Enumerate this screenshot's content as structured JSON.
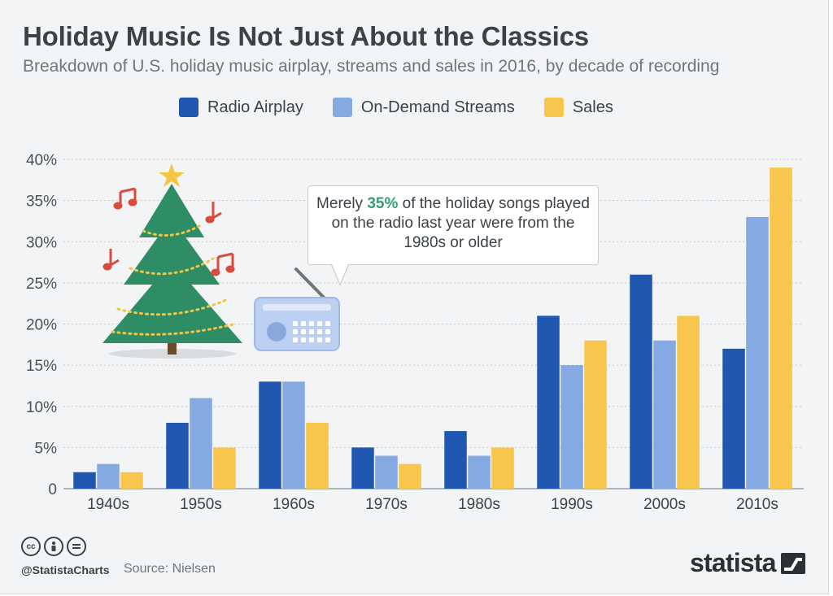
{
  "header": {
    "title": "Holiday Music Is Not Just About the Classics",
    "subtitle": "Breakdown of U.S. holiday music airplay, streams and sales in 2016, by decade of recording"
  },
  "colors": {
    "radio_airplay": "#1f57b0",
    "on_demand_streams": "#85a9e2",
    "sales": "#f8c64c",
    "gridline": "#c5c9cc",
    "text_dark": "#3b4248",
    "highlight": "#33a06f"
  },
  "callout": {
    "before": "Merely ",
    "highlight": "35%",
    "after": " of the holiday songs played on the radio last year were from the 1980s or older"
  },
  "illustrations": [
    "christmas-tree-icon",
    "music-note-icon",
    "radio-icon",
    "star-icon"
  ],
  "footer": {
    "handle": "@StatistaCharts",
    "source": "Source: Nielsen",
    "brand": "statista",
    "license_icons": [
      "cc-icon",
      "attribution-icon",
      "no-derivatives-icon"
    ]
  },
  "chart_data": {
    "type": "bar",
    "title": "Holiday Music Is Not Just About the Classics",
    "subtitle": "Breakdown of U.S. holiday music airplay, streams and sales in 2016, by decade of recording",
    "xlabel": "",
    "ylabel": "",
    "ylim": [
      0,
      40
    ],
    "yticks": [
      0,
      5,
      10,
      15,
      20,
      25,
      30,
      35,
      40
    ],
    "ytick_labels": [
      "0",
      "5%",
      "10%",
      "15%",
      "20%",
      "25%",
      "30%",
      "35%",
      "40%"
    ],
    "grid": true,
    "legend_position": "top",
    "categories": [
      "1940s",
      "1950s",
      "1960s",
      "1970s",
      "1980s",
      "1990s",
      "2000s",
      "2010s"
    ],
    "series": [
      {
        "name": "Radio Airplay",
        "values": [
          2,
          8,
          13,
          5,
          7,
          21,
          26,
          17
        ]
      },
      {
        "name": "On-Demand Streams",
        "values": [
          3,
          11,
          13,
          4,
          4,
          15,
          18,
          33
        ]
      },
      {
        "name": "Sales",
        "values": [
          2,
          5,
          8,
          3,
          5,
          18,
          21,
          39
        ]
      }
    ]
  }
}
